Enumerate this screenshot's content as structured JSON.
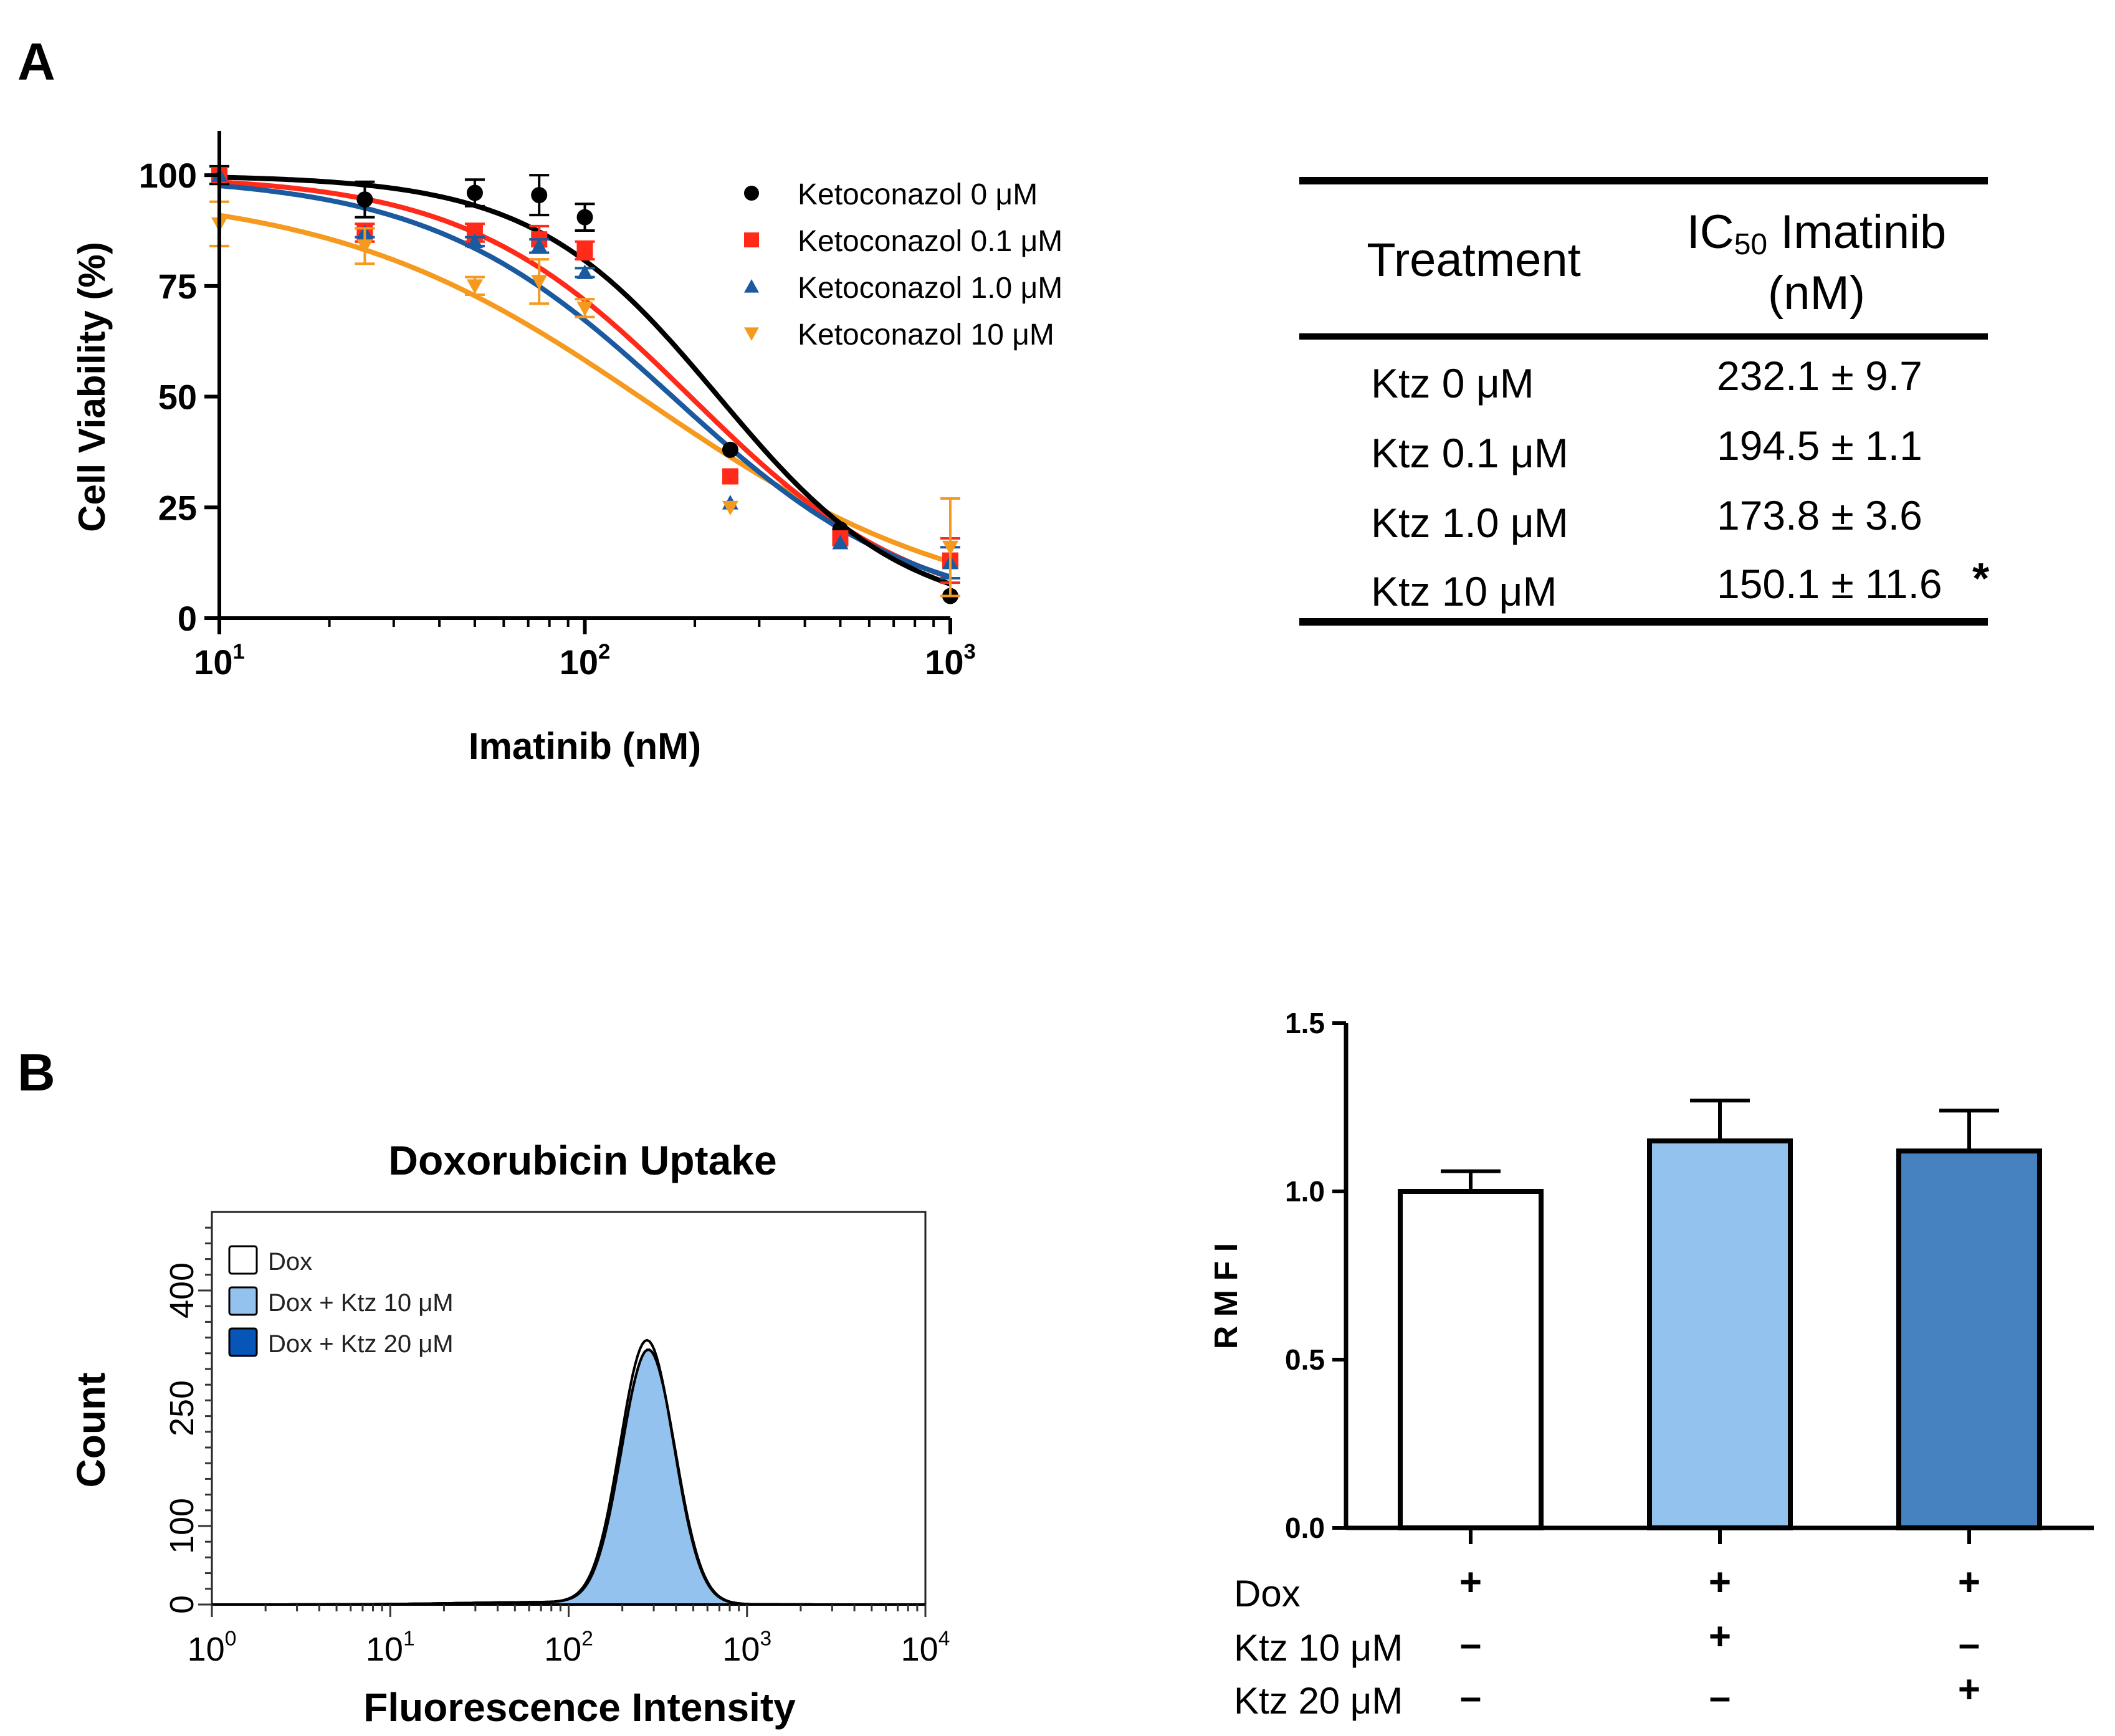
{
  "panel_labels": {
    "a": "A",
    "b": "B"
  },
  "colors": {
    "ktz0": "#000000",
    "ktz01": "#ff2a1a",
    "ktz1": "#1c5aa0",
    "ktz10": "#f59a1e",
    "hist_fill": "#0855b8",
    "bar_dox": "#ffffff",
    "bar_ktz10": "#93c2ee",
    "bar_ktz20": "#4682bf"
  },
  "ic50_table": {
    "col_treatment": "Treatment",
    "col_ic50_main": "IC",
    "col_ic50_sub": "50",
    "col_ic50_rest": " Imatinib",
    "col_ic50_unit": "(nM)",
    "rows": [
      {
        "treatment": "Ktz    0 μM",
        "value": "232.1 ±  9.7",
        "mark": ""
      },
      {
        "treatment": "Ktz 0.1 μM",
        "value": "194.5 ±   1.1",
        "mark": ""
      },
      {
        "treatment": "Ktz 1.0 μM",
        "value": "173.8 ±   3.6",
        "mark": ""
      },
      {
        "treatment": "Ktz  10 μM",
        "value": "150.1 ± 11.6",
        "mark": "*"
      }
    ]
  },
  "conditions": {
    "row_labels": [
      "Dox",
      "Ktz 10 μM",
      "Ktz 20 μM"
    ],
    "columns": [
      [
        "+",
        "–",
        "–"
      ],
      [
        "+",
        "+",
        "–"
      ],
      [
        "+",
        "–",
        "+"
      ]
    ]
  },
  "chart_data": [
    {
      "id": "A-viability",
      "type": "scatter",
      "title": "",
      "xlabel": "Imatinib (nM)",
      "ylabel": "Cell Viability (%)",
      "xscale": "log",
      "xlim": [
        10,
        1000
      ],
      "ylim": [
        0,
        110
      ],
      "xticks": [
        10,
        100,
        1000
      ],
      "xtick_labels": [
        {
          "base": "10",
          "exp": "1"
        },
        {
          "base": "10",
          "exp": "2"
        },
        {
          "base": "10",
          "exp": "3"
        }
      ],
      "yticks": [
        0,
        25,
        50,
        75,
        100
      ],
      "legend_position": "top-right",
      "series": [
        {
          "name": "Ketoconazol 0 μM",
          "color_key": "ktz0",
          "marker": "circle",
          "ic50": 232.1,
          "top": 100,
          "hill": 1.7,
          "x": [
            10,
            25,
            50,
            75,
            100,
            250,
            500,
            1000
          ],
          "y": [
            100,
            94.5,
            96,
            95.5,
            90.5,
            38,
            20,
            5
          ],
          "err": [
            2,
            4,
            3,
            4.5,
            3,
            0,
            0,
            0
          ]
        },
        {
          "name": "Ketoconazol 0.1 μM",
          "color_key": "ktz01",
          "marker": "square",
          "ic50": 194.5,
          "top": 100,
          "hill": 1.4,
          "x": [
            10,
            25,
            50,
            75,
            100,
            250,
            500,
            1000
          ],
          "y": [
            100,
            87,
            87,
            85.5,
            83,
            32,
            18,
            13
          ],
          "err": [
            0,
            2,
            2,
            3,
            2,
            0,
            0,
            5
          ]
        },
        {
          "name": "Ketoconazol 1.0 μM",
          "color_key": "ktz1",
          "marker": "triangle-up",
          "ic50": 173.8,
          "top": 100,
          "hill": 1.3,
          "x": [
            10,
            25,
            50,
            75,
            100,
            250,
            500,
            1000
          ],
          "y": [
            100,
            87,
            85,
            84,
            78,
            26,
            17,
            12.5
          ],
          "err": [
            0,
            1,
            1,
            1.5,
            1,
            0,
            0,
            3.5
          ]
        },
        {
          "name": "Ketoconazol 10 μM",
          "color_key": "ktz10",
          "marker": "triangle-down",
          "ic50": 150.1,
          "top": 97,
          "hill": 1.0,
          "x": [
            10,
            25,
            50,
            75,
            100,
            250,
            1000
          ],
          "y": [
            89,
            84,
            75,
            76,
            70,
            25,
            16
          ],
          "err": [
            5,
            4,
            2,
            5,
            2,
            0,
            11
          ]
        }
      ]
    },
    {
      "id": "B-histogram",
      "type": "area",
      "title": "Doxorubicin Uptake",
      "xlabel": "Fluorescence Intensity",
      "ylabel": "Count",
      "xscale": "log",
      "xlim": [
        1,
        10000
      ],
      "ylim": [
        0,
        500
      ],
      "xtick_labels": [
        {
          "base": "10",
          "exp": "0"
        },
        {
          "base": "10",
          "exp": "1"
        },
        {
          "base": "10",
          "exp": "2"
        },
        {
          "base": "10",
          "exp": "3"
        },
        {
          "base": "10",
          "exp": "4"
        }
      ],
      "yticks": [
        0,
        100,
        250,
        400
      ],
      "ytick_labels": [
        "0",
        "100",
        "250",
        "400"
      ],
      "legend_position": "top-left",
      "series": [
        {
          "name": "Dox",
          "fill_key": "bar_dox",
          "peak_x": 275,
          "peak_y": 335,
          "width_decades": 0.15
        },
        {
          "name": "Dox + Ktz 10 μM",
          "fill_key": "bar_ktz10",
          "peak_x": 280,
          "peak_y": 323,
          "width_decades": 0.15
        },
        {
          "name": "Dox + Ktz 20 μM",
          "fill_key": "hist_fill",
          "peak_x": 280,
          "peak_y": 323,
          "width_decades": 0.15
        }
      ]
    },
    {
      "id": "B-rmfi",
      "type": "bar",
      "title": "",
      "xlabel": "",
      "ylabel": "R M F I",
      "ylim": [
        0,
        1.5
      ],
      "yticks": [
        0.0,
        0.5,
        1.0,
        1.5
      ],
      "ytick_labels": [
        "0.0",
        "0.5",
        "1.0",
        "1.5"
      ],
      "categories": [
        "Dox",
        "Dox + Ktz 10 μM",
        "Dox + Ktz 20 μM"
      ],
      "values": [
        1.0,
        1.15,
        1.12
      ],
      "errors": [
        0.06,
        0.12,
        0.12
      ],
      "color_keys": [
        "bar_dox",
        "bar_ktz10",
        "bar_ktz20"
      ]
    }
  ]
}
